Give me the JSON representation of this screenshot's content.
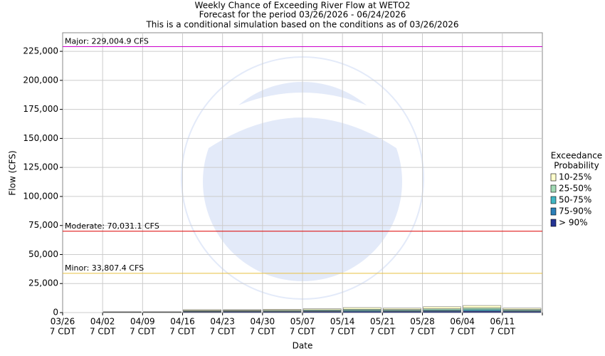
{
  "chart_data": {
    "type": "stacked_bar",
    "title": "Weekly Chance of Exceeding River Flow at WETO2",
    "subtitle": "Forecast for the period 03/26/2026 - 06/24/2026",
    "note": "This is a conditional simulation based on the conditions as of 03/26/2026",
    "y_label": "Flow (CFS)",
    "x_label": "Date",
    "categories": [
      "03/26",
      "04/02",
      "04/09",
      "04/16",
      "04/23",
      "04/30",
      "05/07",
      "05/14",
      "05/21",
      "05/28",
      "06/04",
      "06/11"
    ],
    "x_sublabel": "7 CDT",
    "ylim": [
      0,
      241000
    ],
    "yticks": [
      0,
      {
        "value": 25000,
        "label": "25,000"
      },
      {
        "value": 50000,
        "label": "50,000"
      },
      {
        "value": 75000,
        "label": "75,000"
      },
      {
        "value": 100000,
        "label": "100,000"
      },
      {
        "value": 125000,
        "label": "125,000"
      },
      {
        "value": 150000,
        "label": "150,000"
      },
      {
        "value": 175000,
        "label": "175,000"
      },
      {
        "value": 200000,
        "label": "200,000"
      },
      {
        "value": 225000,
        "label": "225,000"
      }
    ],
    "grid": true,
    "legend_title": [
      "Exceedance",
      "Probability"
    ],
    "series": [
      {
        "name": "10-25%",
        "color": "#ffffcc",
        "values": [
          0,
          100,
          100,
          700,
          600,
          800,
          900,
          1400,
          1100,
          1700,
          2100,
          1100
        ]
      },
      {
        "name": "25-50%",
        "color": "#a1dab4",
        "values": [
          0,
          100,
          100,
          500,
          500,
          600,
          700,
          900,
          800,
          1100,
          1400,
          800
        ]
      },
      {
        "name": "50-75%",
        "color": "#41b6c4",
        "values": [
          0,
          100,
          100,
          400,
          400,
          400,
          500,
          600,
          600,
          700,
          900,
          600
        ]
      },
      {
        "name": "75-90%",
        "color": "#2c7fb8",
        "values": [
          0,
          100,
          100,
          300,
          300,
          300,
          400,
          500,
          400,
          500,
          600,
          400
        ]
      },
      {
        "name": "> 90%",
        "color": "#253494",
        "values": [
          0,
          300,
          300,
          600,
          700,
          700,
          800,
          900,
          900,
          1000,
          1100,
          900
        ]
      }
    ],
    "thresholds": [
      {
        "label": "Major: 229,004.9 CFS",
        "value": 229004.9,
        "color": "#cc00cc"
      },
      {
        "label": "Moderate: 70,031.1 CFS",
        "value": 70031.1,
        "color": "#dd0000"
      },
      {
        "label": "Minor: 33,807.4 CFS",
        "value": 33807.4,
        "color": "#e8c040"
      }
    ]
  }
}
